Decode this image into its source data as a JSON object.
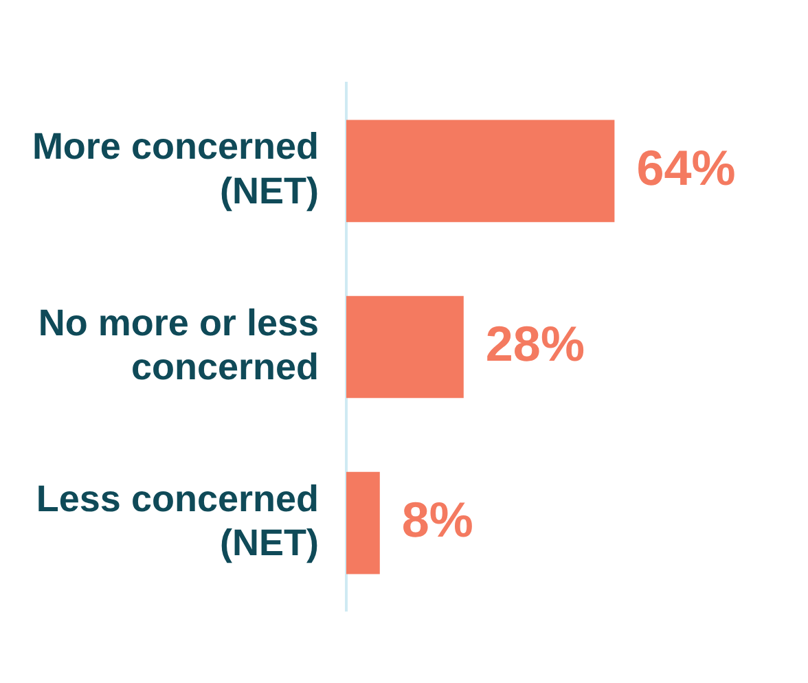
{
  "chart_data": {
    "type": "bar",
    "orientation": "horizontal",
    "categories": [
      "More concerned (NET)",
      "No more or less concerned",
      "Less concerned (NET)"
    ],
    "values": [
      64,
      28,
      8
    ],
    "color": "#f47a60",
    "value_labels": [
      "64%",
      "28%",
      "8%"
    ],
    "grid": false,
    "legend": false
  }
}
